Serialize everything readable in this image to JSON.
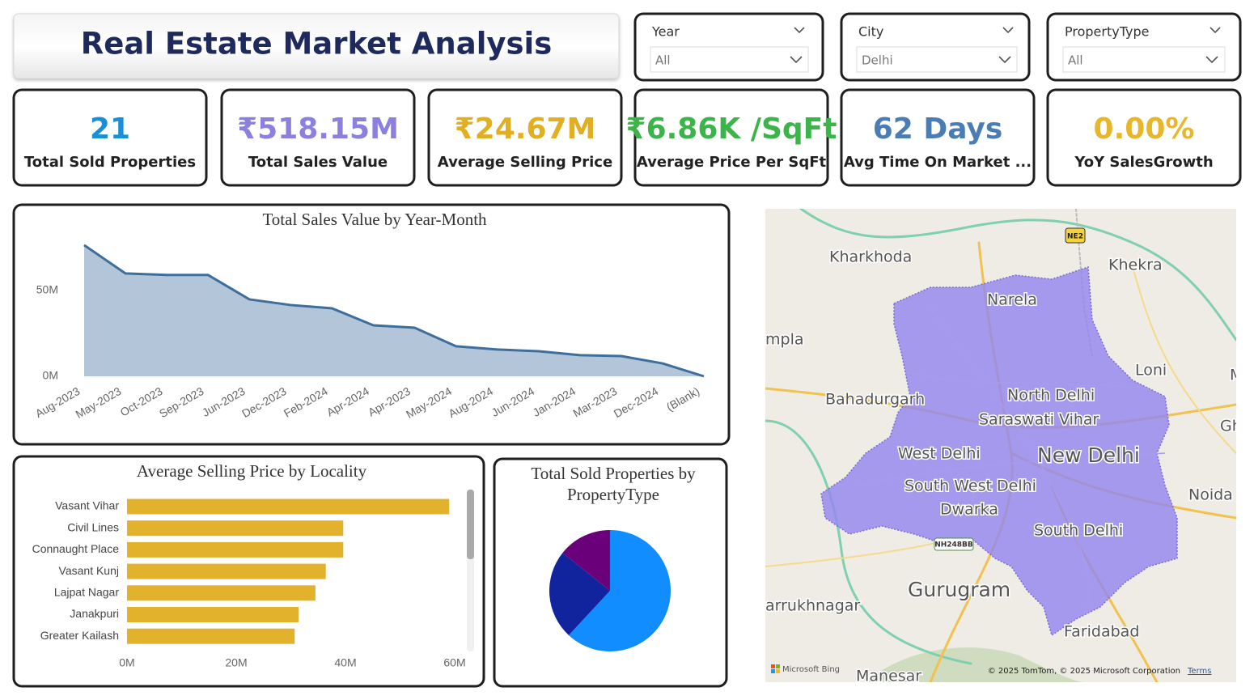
{
  "header": {
    "title": "Real Estate Market Analysis"
  },
  "slicers": [
    {
      "label": "Year",
      "value": "All"
    },
    {
      "label": "City",
      "value": "Delhi"
    },
    {
      "label": "PropertyType",
      "value": "All"
    }
  ],
  "kpis": [
    {
      "value": "21",
      "label": "Total Sold Properties"
    },
    {
      "value": "₹518.15M",
      "label": "Total Sales Value"
    },
    {
      "value": "₹24.67M",
      "label": "Average Selling Price"
    },
    {
      "value": "₹6.86K /SqFt",
      "label": "Average Price Per SqFt"
    },
    {
      "value": "62 Days",
      "label": "Avg Time On Market ..."
    },
    {
      "value": "0.00%",
      "label": "YoY SalesGrowth"
    }
  ],
  "chart_data": [
    {
      "type": "area",
      "title": "Total Sales Value by Year-Month",
      "categories": [
        "Aug-2023",
        "May-2023",
        "Oct-2023",
        "Sep-2023",
        "Jun-2023",
        "Dec-2023",
        "Feb-2024",
        "Apr-2024",
        "Apr-2023",
        "May-2024",
        "Aug-2024",
        "Jun-2024",
        "Jan-2024",
        "Mar-2023",
        "Dec-2024",
        "(Blank)"
      ],
      "values": [
        76.4,
        59.9,
        59,
        59,
        44.8,
        41.5,
        39.6,
        29.7,
        28.3,
        17.5,
        15.6,
        14.6,
        12.3,
        11.8,
        7.5,
        0
      ],
      "color": "#3e6e9c",
      "fill": "#b3c5d8",
      "ylim": [
        0,
        82
      ],
      "yticks": [
        {
          "value": 0,
          "label": "0M"
        },
        {
          "value": 50,
          "label": "50M"
        }
      ]
    },
    {
      "type": "bar",
      "orientation": "horizontal",
      "title": "Average Selling Price by Locality",
      "categories": [
        "Vasant Vihar",
        "Civil Lines",
        "Connaught Place",
        "Vasant Kunj",
        "Lajpat Nagar",
        "Janakpuri",
        "Greater Kailash"
      ],
      "values": [
        59,
        39.6,
        39.6,
        36.4,
        34.5,
        31.4,
        30.7
      ],
      "color": "#e3b22c",
      "xlim": [
        0,
        60
      ],
      "xticks": [
        {
          "value": 0,
          "label": "0M"
        },
        {
          "value": 20,
          "label": "20M"
        },
        {
          "value": 40,
          "label": "40M"
        },
        {
          "value": 60,
          "label": "60M"
        }
      ]
    },
    {
      "type": "pie",
      "title": "Total Sold Properties by PropertyType",
      "values": [
        13,
        5,
        3
      ],
      "colors": [
        "#118dff",
        "#12239e",
        "#6b007b"
      ]
    }
  ],
  "map": {
    "labels": [
      "Kharkhoda",
      "Khekra",
      "Narela",
      "mpla",
      "Loni",
      "M",
      "Bahadurgarh",
      "North Delhi",
      "Saraswati Vihar",
      "Ghaz",
      "West Delhi",
      "New Delhi",
      "South West Delhi",
      "Noida",
      "Dwarka",
      "South Delhi",
      "Gurugram",
      "arrukhnagar",
      "Faridabad",
      "Manesar"
    ],
    "road_badges": [
      "NE2",
      "NH248BB"
    ],
    "attribution": {
      "logo": "Microsoft Bing",
      "copyright": "© 2025 TomTom, © 2025 Microsoft Corporation",
      "terms": "Terms"
    }
  }
}
